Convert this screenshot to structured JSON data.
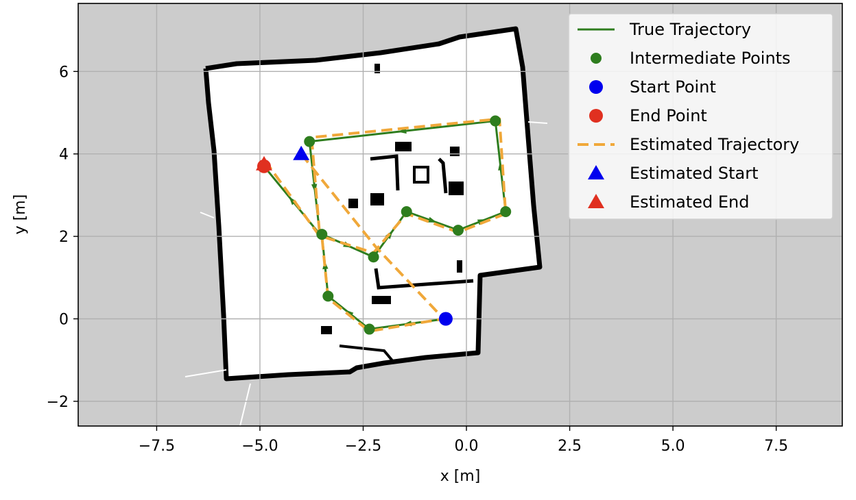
{
  "chart_data": {
    "type": "line",
    "title": "",
    "xlabel": "x [m]",
    "ylabel": "y [m]",
    "xlim": [
      -9.4,
      9.1
    ],
    "ylim": [
      -2.6,
      7.65
    ],
    "grid": true,
    "legend_placement": "top-right",
    "x_ticks": [
      -7.5,
      -5.0,
      -2.5,
      0.0,
      2.5,
      5.0,
      7.5
    ],
    "x_tick_labels": [
      "−7.5",
      "−5.0",
      "−2.5",
      "0.0",
      "2.5",
      "5.0",
      "7.5"
    ],
    "y_ticks": [
      -2,
      0,
      2,
      4,
      6
    ],
    "y_tick_labels": [
      "−2",
      "0",
      "2",
      "4",
      "6"
    ],
    "map_background": {
      "unknown_color": "#cccccc",
      "free_color": "#ffffff",
      "wall_color": "#000000"
    },
    "series": [
      {
        "name": "True Trajectory",
        "kind": "line",
        "color": "#2e7d1e",
        "x": [
          -0.5,
          -2.35,
          -3.35,
          -3.5,
          -2.25,
          -1.45,
          -0.2,
          0.95,
          0.7,
          -3.8,
          -3.55,
          -4.9
        ],
        "y": [
          0.0,
          -0.25,
          0.55,
          2.05,
          1.5,
          2.6,
          2.15,
          2.6,
          4.8,
          4.3,
          2.05,
          3.7
        ]
      },
      {
        "name": "Intermediate Points",
        "kind": "scatter",
        "color": "#2e7d1e",
        "x": [
          -2.35,
          -3.35,
          -3.5,
          -2.25,
          -1.45,
          -0.2,
          0.95,
          0.7,
          -3.8
        ],
        "y": [
          -0.25,
          0.55,
          2.05,
          1.5,
          2.6,
          2.15,
          2.6,
          4.8,
          4.3
        ]
      },
      {
        "name": "Start Point",
        "kind": "scatter",
        "color": "#0000ee",
        "x": [
          -0.5
        ],
        "y": [
          0.0
        ]
      },
      {
        "name": "End Point",
        "kind": "scatter",
        "color": "#e03020",
        "x": [
          -4.9
        ],
        "y": [
          3.7
        ]
      },
      {
        "name": "Estimated Trajectory",
        "kind": "dashed-line",
        "color": "#f0a83a",
        "x": [
          -4.0,
          -2.2,
          -0.55,
          -2.35,
          -3.35,
          -3.5,
          -2.25,
          -1.45,
          -0.2,
          0.95,
          0.8,
          -3.75,
          -3.55,
          -4.85
        ],
        "y": [
          4.0,
          1.75,
          0.0,
          -0.3,
          0.5,
          2.0,
          1.6,
          2.55,
          2.1,
          2.55,
          4.85,
          4.4,
          2.0,
          3.8
        ]
      },
      {
        "name": "Estimated Start",
        "kind": "triangle",
        "color": "#0000ee",
        "x": [
          -4.0
        ],
        "y": [
          4.0
        ]
      },
      {
        "name": "Estimated End",
        "kind": "triangle",
        "color": "#e03020",
        "x": [
          -4.9
        ],
        "y": [
          3.75
        ]
      }
    ]
  },
  "legend": {
    "entries": [
      {
        "label": "True Trajectory",
        "symbol": "line",
        "color": "#2e7d1e"
      },
      {
        "label": "Intermediate Points",
        "symbol": "dot",
        "color": "#2e7d1e"
      },
      {
        "label": "Start Point",
        "symbol": "circle",
        "color": "#0000ee"
      },
      {
        "label": "End Point",
        "symbol": "circle",
        "color": "#e03020"
      },
      {
        "label": "Estimated Trajectory",
        "symbol": "dash",
        "color": "#f0a83a"
      },
      {
        "label": "Estimated Start",
        "symbol": "triangle",
        "color": "#0000ee"
      },
      {
        "label": "Estimated End",
        "symbol": "triangle",
        "color": "#e03020"
      }
    ]
  }
}
